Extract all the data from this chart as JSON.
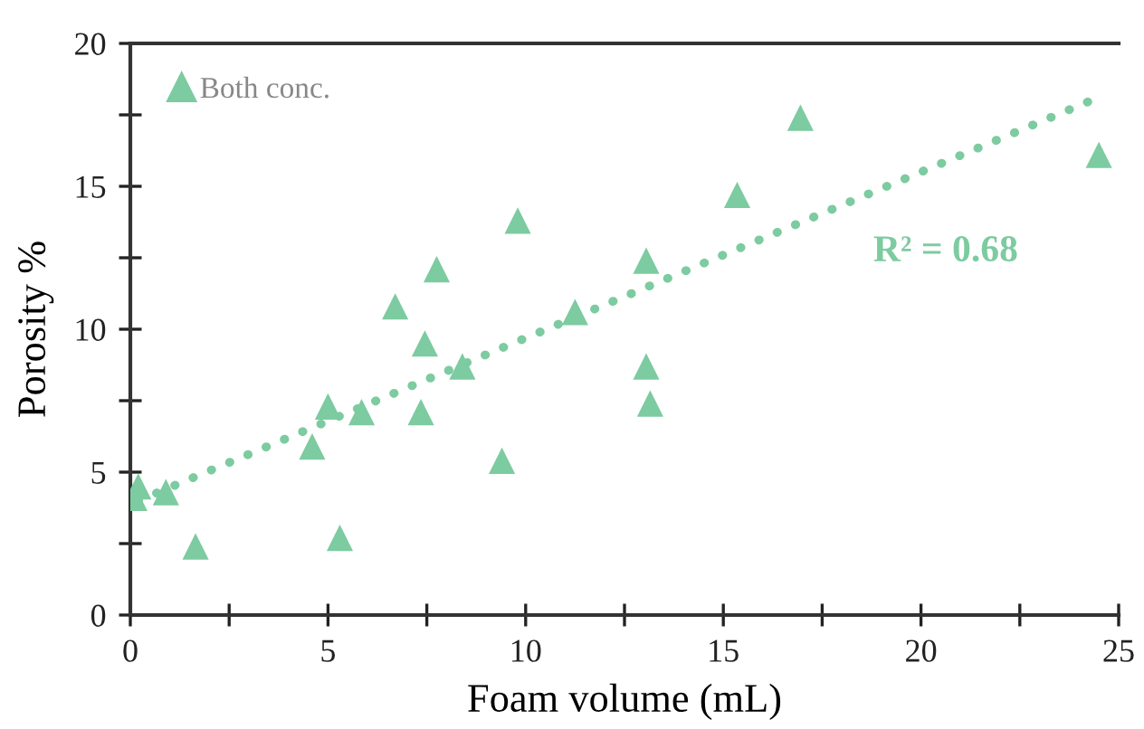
{
  "chart_data": {
    "type": "scatter",
    "xlabel": "Foam volume (mL)",
    "ylabel": "Porosity %",
    "series": [
      {
        "name": "Both conc.",
        "color": "#7dcba0",
        "marker": "triangle",
        "x": [
          0.2,
          0.1,
          0.9,
          1.65,
          4.6,
          5.0,
          5.3,
          5.85,
          6.7,
          7.35,
          7.45,
          7.75,
          8.4,
          9.4,
          9.8,
          11.25,
          13.05,
          13.05,
          13.15,
          15.35,
          16.95,
          24.5
        ],
        "values": [
          4.5,
          4.1,
          4.3,
          2.4,
          5.9,
          7.3,
          2.7,
          7.1,
          10.8,
          7.1,
          9.5,
          12.1,
          8.7,
          5.4,
          13.8,
          10.6,
          12.4,
          8.7,
          7.4,
          14.7,
          17.4,
          16.1
        ]
      },
      {
        "type": "line",
        "color": "#7dcba0",
        "line_style": "dotted",
        "x": [
          0.2,
          24.3
        ],
        "values": [
          4.0,
          18.0
        ]
      }
    ],
    "annotations": [
      "R² = 0.68"
    ],
    "xlim": [
      0,
      25
    ],
    "ylim": [
      0,
      20
    ],
    "xticks": [
      0,
      {
        "value": 2.5,
        "label": null
      },
      5,
      {
        "value": 7.5,
        "label": null
      },
      10,
      {
        "value": 12.5,
        "label": null
      },
      15,
      {
        "value": 17.5,
        "label": null
      },
      20,
      {
        "value": 22.5,
        "label": null
      },
      25
    ],
    "yticks": [
      0,
      {
        "value": 2.5,
        "label": null
      },
      5,
      {
        "value": 7.5,
        "label": null
      },
      10,
      {
        "value": 12.5,
        "label": null
      },
      15,
      {
        "value": 17.5,
        "label": null
      },
      20
    ],
    "legend": "top left",
    "grid": false
  }
}
